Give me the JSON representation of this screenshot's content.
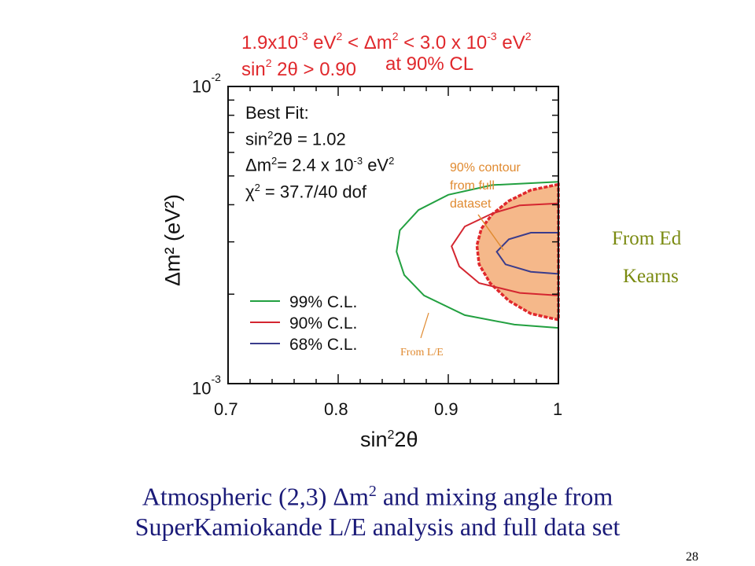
{
  "chart_data": {
    "type": "contour",
    "title": "1.9x10-3 eV2 < Δm2 < 3.0 x 10-3 eV2 | sin2 2θ > 0.90 at 90% CL",
    "xlabel": "sin²2θ",
    "ylabel": "Δm² (eV²)",
    "xlim": [
      0.7,
      1.0
    ],
    "ylim": [
      0.001,
      0.01
    ],
    "yscale": "log",
    "xticks": [
      "0.7",
      "0.8",
      "0.9",
      "1"
    ],
    "yticks": [
      "10-3",
      "10-2"
    ],
    "series": [
      {
        "name": "99% C.L.",
        "color": "#22a040",
        "points": [
          [
            1.0,
            0.00478
          ],
          [
            0.94,
            0.00466
          ],
          [
            0.9,
            0.00432
          ],
          [
            0.873,
            0.00384
          ],
          [
            0.856,
            0.00328
          ],
          [
            0.853,
            0.00278
          ],
          [
            0.86,
            0.00232
          ],
          [
            0.878,
            0.00198
          ],
          [
            0.915,
            0.0017
          ],
          [
            0.96,
            0.00158
          ],
          [
            1.0,
            0.00154
          ]
        ]
      },
      {
        "name": "90% C.L.",
        "color": "#d42630",
        "points": [
          [
            1.0,
            0.00404
          ],
          [
            0.965,
            0.00398
          ],
          [
            0.94,
            0.00374
          ],
          [
            0.915,
            0.00338
          ],
          [
            0.903,
            0.0029
          ],
          [
            0.91,
            0.00248
          ],
          [
            0.928,
            0.00218
          ],
          [
            0.965,
            0.00202
          ],
          [
            1.0,
            0.00198
          ]
        ]
      },
      {
        "name": "68% C.L.",
        "color": "#3a3c8c",
        "points": [
          [
            1.0,
            0.00322
          ],
          [
            0.975,
            0.00322
          ],
          [
            0.955,
            0.00306
          ],
          [
            0.944,
            0.00278
          ],
          [
            0.952,
            0.00252
          ],
          [
            0.975,
            0.00238
          ],
          [
            1.0,
            0.00234
          ]
        ]
      },
      {
        "name": "90% contour from full dataset",
        "color": "#e0282c",
        "fill": "#f5b88a",
        "points": [
          [
            1.0,
            0.00468
          ],
          [
            0.975,
            0.00448
          ],
          [
            0.955,
            0.00412
          ],
          [
            0.94,
            0.00372
          ],
          [
            0.93,
            0.00332
          ],
          [
            0.926,
            0.00292
          ],
          [
            0.928,
            0.00252
          ],
          [
            0.938,
            0.00218
          ],
          [
            0.955,
            0.0019
          ],
          [
            0.975,
            0.00172
          ],
          [
            1.0,
            0.00164
          ]
        ]
      }
    ],
    "legend": {
      "position": "lower-left",
      "entries": [
        "99% C.L.",
        "90% C.L.",
        "68% C.L."
      ]
    },
    "best_fit": {
      "heading": "Best Fit:",
      "sin2": "1.02",
      "dm2": "2.4 x 10-3 eV2",
      "chi2": "37.7/40 dof"
    },
    "annotations": [
      "90% contour",
      "from full",
      "dataset",
      "From L/E"
    ]
  },
  "header": {
    "line1_a": "1.9x10",
    "line1_exp1": "-3",
    "line1_b": " eV",
    "line1_sq1": "2",
    "line1_c": " < Δm",
    "line1_sq2": "2",
    "line1_d": " < 3.0 x 10",
    "line1_exp2": "-3",
    "line1_e": " eV",
    "line1_sq3": "2",
    "line2_a": "sin",
    "line2_sq": "2",
    "line2_b": " 2θ > 0.90",
    "line2_c": "at 90% CL"
  },
  "axis": {
    "ytick_top_base": "10",
    "ytick_top_exp": "-2",
    "ytick_bottom_base": "10",
    "ytick_bottom_exp": "-3",
    "xlabel_a": "sin",
    "xlabel_sq": "2",
    "xlabel_b": "2θ",
    "ylabel": "Δm² (eV²)"
  },
  "bestfit_text": {
    "line1": "Best Fit:",
    "line2_a": "sin",
    "line2_sq": "2",
    "line2_b": "2θ = 1.02",
    "line3_a": "Δm",
    "line3_sq": "2",
    "line3_b": "= 2.4 x 10",
    "line3_exp": "-3",
    "line3_c": " eV",
    "line3_sq2": "2",
    "line4_a": "χ",
    "line4_sq": "2",
    "line4_b": " = 37.7/40 dof"
  },
  "credit": {
    "line1": "From Ed",
    "line2": "Kearns"
  },
  "caption": {
    "line1_a": "Atmospheric (2,3) Δm",
    "line1_sq": "2",
    "line1_b": " and mixing angle from",
    "line2": "SuperKamiokande L/E analysis and full data set"
  },
  "page_number": "28",
  "colors": {
    "header_red": "#e0282c",
    "credit_olive": "#7a8a10",
    "caption_navy": "#1a1a78",
    "contour_fill": "#f5b88a",
    "annotation_orange": "#e08a30"
  }
}
